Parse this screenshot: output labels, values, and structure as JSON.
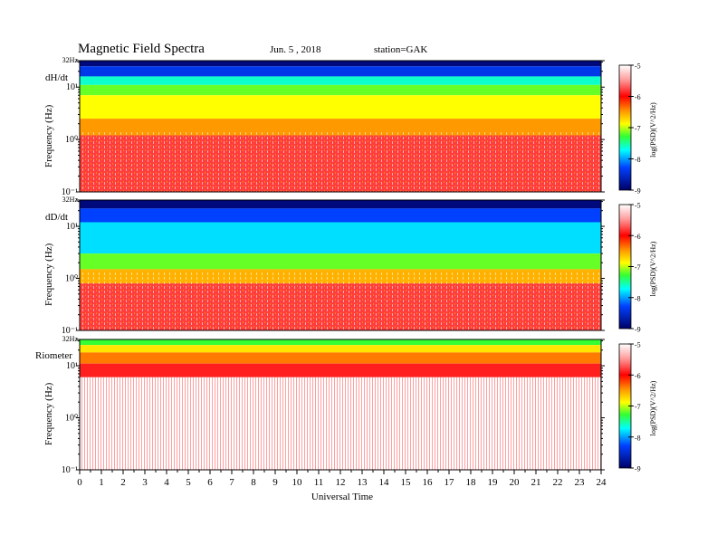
{
  "header": {
    "title": "Magnetic  Field  Spectra",
    "date": "Jun.  5  , 2018",
    "station": "station=GAK"
  },
  "colorbar": {
    "label": "log(PSD)(V^2/Hz)",
    "ticks": [
      "-5",
      "-6",
      "-7",
      "-8",
      "-9"
    ]
  },
  "colors": {
    "white": "#ffffff",
    "red": "#ff1a1a",
    "orange": "#ff9900",
    "yellow": "#ffff00",
    "green": "#33ff33",
    "cyan": "#00ffff",
    "blue": "#0040ff",
    "navy": "#000066"
  },
  "chart_data": [
    {
      "type": "heatmap",
      "panel_label": "dH/dt",
      "ylabel": "Frequency  (Hz)",
      "xlim": [
        0,
        24
      ],
      "y_ticks": [
        "32Hz",
        "10¹",
        "10⁰",
        "10⁻¹"
      ],
      "zlim": [
        -9,
        -5
      ],
      "bands": [
        {
          "f_top": 32,
          "f_bottom": 25,
          "value": -8.9
        },
        {
          "f_top": 25,
          "f_bottom": 16,
          "value": -8.4
        },
        {
          "f_top": 16,
          "f_bottom": 11,
          "value": -7.6
        },
        {
          "f_top": 11,
          "f_bottom": 7,
          "value": -7.2
        },
        {
          "f_top": 7,
          "f_bottom": 2.5,
          "value": -6.9
        },
        {
          "f_top": 2.5,
          "f_bottom": 1.2,
          "value": -6.5
        },
        {
          "f_top": 1.2,
          "f_bottom": 0.1,
          "value": -5.8
        }
      ]
    },
    {
      "type": "heatmap",
      "panel_label": "dD/dt",
      "ylabel": "Frequency  (Hz)",
      "xlim": [
        0,
        24
      ],
      "y_ticks": [
        "32Hz",
        "10¹",
        "10⁰",
        "10⁻¹"
      ],
      "zlim": [
        -9,
        -5
      ],
      "bands": [
        {
          "f_top": 32,
          "f_bottom": 22,
          "value": -8.9
        },
        {
          "f_top": 22,
          "f_bottom": 12,
          "value": -8.3
        },
        {
          "f_top": 12,
          "f_bottom": 3,
          "value": -7.8
        },
        {
          "f_top": 3,
          "f_bottom": 1.5,
          "value": -7.2
        },
        {
          "f_top": 1.5,
          "f_bottom": 0.8,
          "value": -6.6
        },
        {
          "f_top": 0.8,
          "f_bottom": 0.1,
          "value": -5.8
        }
      ]
    },
    {
      "type": "heatmap",
      "panel_label": "Riometer",
      "ylabel": "Frequency  (Hz)",
      "xlim": [
        0,
        24
      ],
      "y_ticks": [
        "32Hz",
        "10¹",
        "10⁰",
        "10⁻¹"
      ],
      "zlim": [
        -9,
        -5
      ],
      "bands": [
        {
          "f_top": 32,
          "f_bottom": 25,
          "value": -7.3
        },
        {
          "f_top": 25,
          "f_bottom": 18,
          "value": -6.8
        },
        {
          "f_top": 18,
          "f_bottom": 11,
          "value": -6.4
        },
        {
          "f_top": 11,
          "f_bottom": 6,
          "value": -5.9
        },
        {
          "f_top": 6,
          "f_bottom": 0.1,
          "value": -5.0
        }
      ]
    }
  ],
  "xaxis": {
    "label": "Universal Time",
    "ticks": [
      "0",
      "1",
      "2",
      "3",
      "4",
      "5",
      "6",
      "7",
      "8",
      "9",
      "10",
      "11",
      "12",
      "13",
      "14",
      "15",
      "16",
      "17",
      "18",
      "19",
      "20",
      "21",
      "22",
      "23",
      "24"
    ]
  }
}
